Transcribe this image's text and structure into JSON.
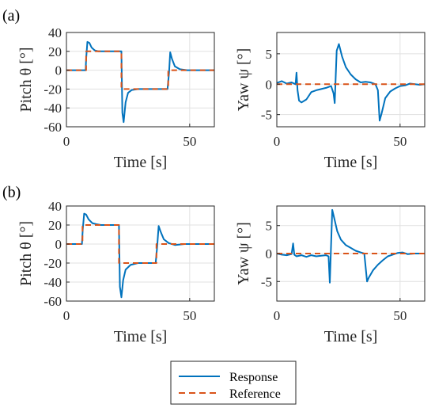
{
  "panel_labels": [
    "(a)",
    "(b)"
  ],
  "legend": {
    "response": "Response",
    "reference": "Reference"
  },
  "colors": {
    "response": "#0072BD",
    "reference": "#D95319",
    "grid": "#e1e1e1",
    "axis": "#262626"
  },
  "chart_data": [
    {
      "id": "a-pitch",
      "type": "line",
      "panel": "(a)",
      "xlabel": "Time [s]",
      "ylabel": "Pitch θ [°]",
      "xlim": [
        0,
        60
      ],
      "ylim": [
        -60,
        40
      ],
      "xticks": [
        0,
        50
      ],
      "yticks": [
        -60,
        -40,
        -20,
        0,
        20,
        40
      ],
      "grid": true,
      "series": [
        {
          "name": "Response",
          "x": [
            0,
            7.8,
            8.0,
            8.5,
            9.3,
            10.2,
            11.5,
            13,
            15,
            18,
            21,
            22.3,
            22.7,
            23.2,
            24,
            25,
            26.5,
            29,
            33,
            38,
            41,
            41.6,
            42.1,
            42.8,
            44,
            46,
            49,
            53,
            57,
            60
          ],
          "y": [
            0,
            0,
            12,
            30,
            29,
            24,
            21,
            20,
            20,
            20,
            20,
            20,
            -45,
            -55,
            -34,
            -24,
            -21,
            -20,
            -20,
            -20,
            -20,
            -3,
            19,
            12,
            4,
            1,
            0,
            0,
            0,
            0
          ]
        },
        {
          "name": "Reference",
          "x": [
            0,
            8,
            8,
            22.3,
            22.3,
            41.3,
            41.3,
            60
          ],
          "y": [
            0,
            0,
            20,
            20,
            -20,
            -20,
            0,
            0
          ]
        }
      ]
    },
    {
      "id": "a-yaw",
      "type": "line",
      "panel": "(a)",
      "xlabel": "Time [s]",
      "ylabel": "Yaw ψ [°]",
      "xlim": [
        0,
        60
      ],
      "ylim": [
        -7,
        8.5
      ],
      "xticks": [
        0,
        50
      ],
      "yticks": [
        -5,
        0,
        5
      ],
      "grid": true,
      "series": [
        {
          "name": "Response",
          "x": [
            0,
            2,
            4,
            6,
            7.6,
            8,
            8.4,
            9,
            10,
            12,
            14,
            16,
            18,
            20,
            22,
            23,
            23.5,
            24.3,
            25.2,
            26.5,
            28,
            30,
            32,
            34,
            36,
            38,
            40,
            41,
            41.7,
            42.5,
            44,
            46,
            48,
            50,
            52,
            54,
            56,
            58,
            60
          ],
          "y": [
            0.2,
            0.5,
            0.1,
            0.3,
            0,
            1.9,
            -1,
            -2.7,
            -3,
            -2.5,
            -1.3,
            -1,
            -0.8,
            -0.6,
            -0.3,
            -1.5,
            -3.1,
            5.5,
            6.6,
            4.5,
            2.8,
            1.6,
            0.8,
            0.3,
            0.4,
            0.3,
            0,
            -1,
            -6,
            -4.8,
            -2.3,
            -1.2,
            -0.7,
            -0.3,
            -0.2,
            0.1,
            0,
            -0.1,
            0
          ]
        },
        {
          "name": "Reference",
          "x": [
            0,
            60
          ],
          "y": [
            0,
            0
          ]
        }
      ]
    },
    {
      "id": "b-pitch",
      "type": "line",
      "panel": "(b)",
      "xlabel": "Time [s]",
      "ylabel": "Pitch θ [°]",
      "xlim": [
        0,
        60
      ],
      "ylim": [
        -60,
        40
      ],
      "xticks": [
        0,
        50
      ],
      "yticks": [
        -60,
        -40,
        -20,
        0,
        20,
        40
      ],
      "grid": true,
      "series": [
        {
          "name": "Response",
          "x": [
            0,
            6.3,
            6.6,
            7.2,
            8,
            9,
            10.5,
            12,
            14,
            17,
            20,
            21.3,
            21.7,
            22.3,
            23,
            24,
            26,
            29,
            33,
            36.2,
            36.8,
            37.4,
            38.2,
            39.5,
            41.5,
            44,
            48,
            53,
            57,
            60
          ],
          "y": [
            0,
            0,
            15,
            32,
            31,
            26,
            22,
            21,
            20,
            20,
            20,
            20,
            -45,
            -56,
            -38,
            -27,
            -22,
            -20,
            -20,
            -20,
            -3,
            19,
            13,
            5,
            1,
            -1,
            0,
            0,
            0,
            0
          ]
        },
        {
          "name": "Reference",
          "x": [
            0,
            6.5,
            6.5,
            21.3,
            21.3,
            36.5,
            36.5,
            60
          ],
          "y": [
            0,
            0,
            20,
            20,
            -20,
            -20,
            0,
            0
          ]
        }
      ]
    },
    {
      "id": "b-yaw",
      "type": "line",
      "panel": "(b)",
      "xlabel": "Time [s]",
      "ylabel": "Yaw ψ [°]",
      "xlim": [
        0,
        60
      ],
      "ylim": [
        -8.5,
        8.5
      ],
      "xticks": [
        0,
        50
      ],
      "yticks": [
        -5,
        0,
        5
      ],
      "grid": true,
      "series": [
        {
          "name": "Response",
          "x": [
            0,
            2,
            4,
            6,
            6.6,
            7.1,
            8,
            10,
            12,
            14,
            16,
            18,
            20,
            21,
            21.5,
            22.5,
            23.2,
            24.5,
            26,
            28,
            30,
            32,
            34,
            35.5,
            36.6,
            37.3,
            39,
            41,
            43,
            45,
            47,
            49,
            51,
            53,
            56,
            60
          ],
          "y": [
            0,
            -0.2,
            -0.3,
            -0.1,
            1.8,
            -0.2,
            -0.5,
            -0.3,
            -0.6,
            -0.3,
            -0.5,
            -0.4,
            -0.3,
            -0.5,
            -5.2,
            7.8,
            6.5,
            4,
            2.5,
            1.5,
            1,
            0.5,
            0.2,
            0,
            -5,
            -4.3,
            -3,
            -2,
            -1.2,
            -0.5,
            -0.2,
            0.1,
            0.2,
            -0.1,
            0,
            0
          ]
        },
        {
          "name": "Reference",
          "x": [
            0,
            60
          ],
          "y": [
            0,
            0
          ]
        }
      ]
    }
  ]
}
